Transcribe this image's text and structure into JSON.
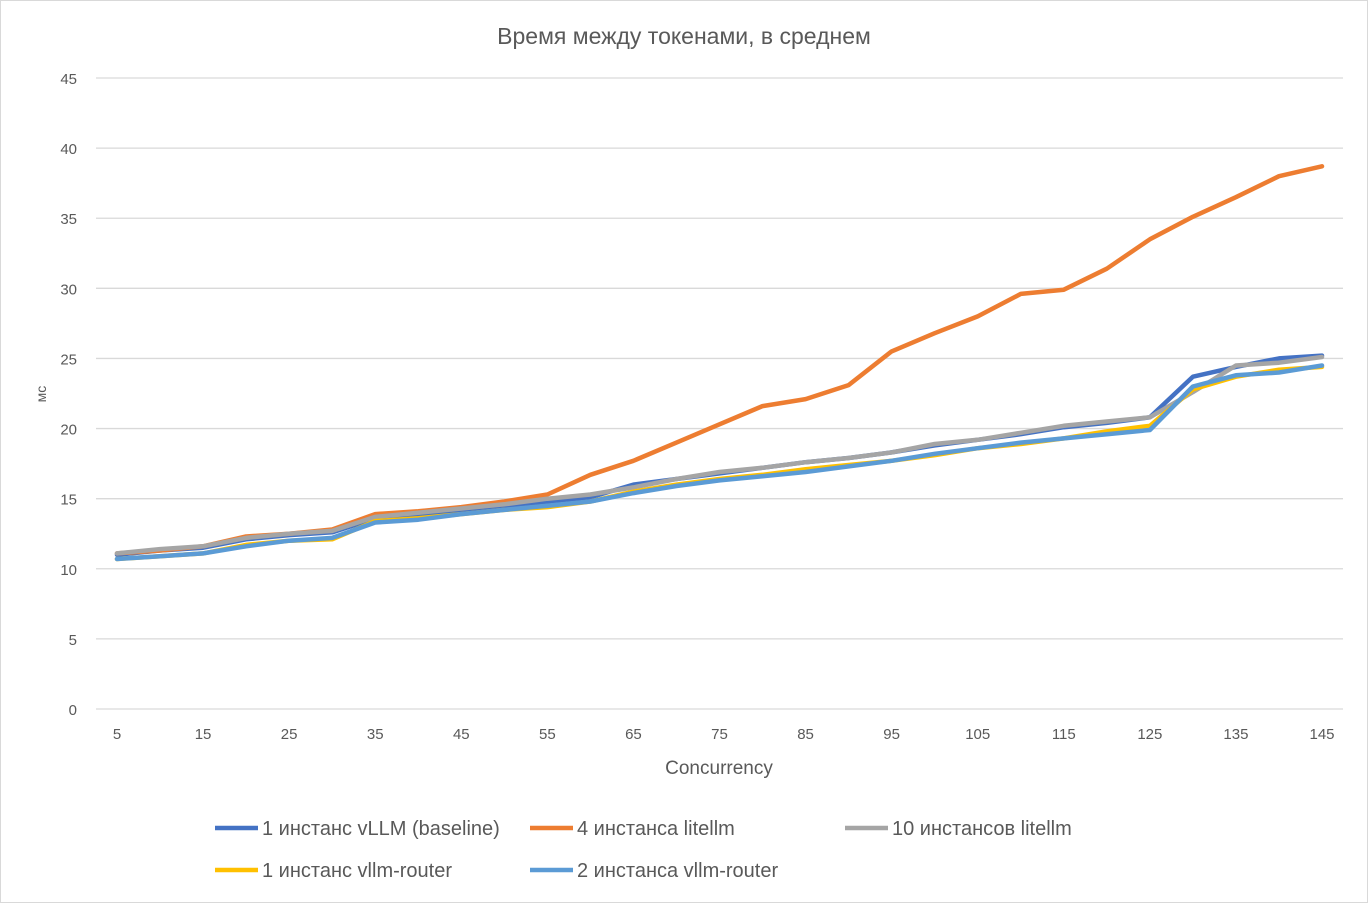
{
  "chart_data": {
    "type": "line",
    "title": "Время между токенами, в среднем",
    "xlabel": "Concurrency",
    "ylabel": "мс",
    "ylim": [
      0,
      45
    ],
    "yticks": [
      0,
      5,
      10,
      15,
      20,
      25,
      30,
      35,
      40,
      45
    ],
    "xtick_labels": [
      5,
      15,
      25,
      35,
      45,
      55,
      65,
      75,
      85,
      95,
      105,
      115,
      125,
      135,
      145
    ],
    "grid": "horizontal",
    "legend_position": "bottom",
    "x": [
      5,
      10,
      15,
      20,
      25,
      30,
      35,
      40,
      45,
      50,
      55,
      60,
      65,
      70,
      75,
      80,
      85,
      90,
      95,
      100,
      105,
      110,
      115,
      120,
      125,
      130,
      135,
      140,
      145
    ],
    "series": [
      {
        "name": "1 инстанс vLLM (baseline)",
        "color": "#4472C4",
        "values": [
          11.0,
          11.3,
          11.5,
          12.1,
          12.4,
          12.6,
          13.6,
          13.9,
          14.2,
          14.5,
          14.8,
          15.1,
          16.0,
          16.4,
          16.8,
          17.2,
          17.6,
          17.9,
          18.3,
          18.8,
          19.2,
          19.6,
          20.1,
          20.4,
          20.8,
          23.7,
          24.4,
          25.0,
          25.2
        ]
      },
      {
        "name": "4 инстанса litellm",
        "color": "#ED7D31",
        "values": [
          11.1,
          11.3,
          11.6,
          12.3,
          12.5,
          12.8,
          13.9,
          14.1,
          14.4,
          14.8,
          15.3,
          16.7,
          17.7,
          19.0,
          20.3,
          21.6,
          22.1,
          23.1,
          25.5,
          26.8,
          28.0,
          29.6,
          29.9,
          31.4,
          33.5,
          35.1,
          36.5,
          38.0,
          38.7
        ]
      },
      {
        "name": "10 инстансов litellm",
        "color": "#A5A5A5",
        "values": [
          11.1,
          11.4,
          11.6,
          12.2,
          12.5,
          12.7,
          13.7,
          14.0,
          14.3,
          14.6,
          15.0,
          15.3,
          15.8,
          16.4,
          16.9,
          17.2,
          17.6,
          17.9,
          18.3,
          18.9,
          19.2,
          19.7,
          20.2,
          20.5,
          20.8,
          22.6,
          24.5,
          24.7,
          25.1
        ]
      },
      {
        "name": "1 инстанс vllm-router",
        "color": "#FFC000",
        "values": [
          10.7,
          10.9,
          11.1,
          11.7,
          12.0,
          12.1,
          13.4,
          13.6,
          13.9,
          14.2,
          14.4,
          14.8,
          15.5,
          16.0,
          16.4,
          16.7,
          17.1,
          17.4,
          17.7,
          18.1,
          18.6,
          18.9,
          19.3,
          19.8,
          20.2,
          22.8,
          23.7,
          24.2,
          24.4
        ]
      },
      {
        "name": "2 инстанса vllm-router",
        "color": "#5B9BD5",
        "values": [
          10.7,
          10.9,
          11.1,
          11.6,
          12.0,
          12.2,
          13.3,
          13.5,
          13.9,
          14.2,
          14.5,
          14.8,
          15.4,
          15.9,
          16.3,
          16.6,
          16.9,
          17.3,
          17.7,
          18.2,
          18.6,
          19.0,
          19.3,
          19.6,
          19.9,
          23.0,
          23.8,
          24.0,
          24.5
        ]
      }
    ]
  }
}
